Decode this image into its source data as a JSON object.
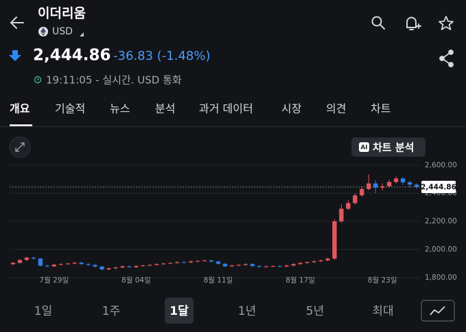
{
  "header": {
    "title": "이더리움",
    "currency": "USD",
    "price": "2,444.86",
    "change": "-36.83 (-1.48%)",
    "status": "19:11:05 - 실시간. USD 통화"
  },
  "tabs": [
    "개요",
    "기술적",
    "뉴스",
    "분석",
    "과거 데이터",
    "시장",
    "의견",
    "차트"
  ],
  "ai_button": {
    "badge": "AI",
    "label": "차트 분석"
  },
  "ranges": [
    "1일",
    "1주",
    "1달",
    "1년",
    "5년",
    "최대"
  ],
  "selected_range": "1달",
  "chart_data": {
    "type": "candlestick",
    "categories": [
      null,
      null,
      null,
      null,
      null,
      null,
      "7월 29일",
      null,
      null,
      null,
      null,
      null,
      null,
      null,
      null,
      null,
      null,
      null,
      "8월 04일",
      null,
      null,
      null,
      null,
      null,
      null,
      null,
      null,
      null,
      null,
      null,
      "8월 11일",
      null,
      null,
      null,
      null,
      null,
      null,
      null,
      null,
      null,
      null,
      null,
      "8월 17일",
      null,
      null,
      null,
      null,
      null,
      null,
      null,
      null,
      null,
      null,
      null,
      "8월 23일",
      null,
      null,
      null,
      null,
      null
    ],
    "open": [
      1895,
      1905,
      1925,
      1942,
      1935,
      1885,
      1880,
      1892,
      1896,
      1900,
      1906,
      1896,
      1890,
      1878,
      1858,
      1866,
      1872,
      1880,
      1874,
      1882,
      1886,
      1890,
      1896,
      1900,
      1904,
      1910,
      1908,
      1915,
      1918,
      1922,
      1914,
      1898,
      1880,
      1886,
      1890,
      1896,
      1882,
      1876,
      1880,
      1882,
      1879,
      1886,
      1896,
      1904,
      1910,
      1916,
      1922,
      1935,
      2200,
      2290,
      2330,
      2385,
      2430,
      2470,
      2440,
      2450,
      2480,
      2505,
      2478,
      2462
    ],
    "high": [
      1911,
      1931,
      1948,
      1948,
      1941,
      1891,
      1898,
      1902,
      1906,
      1912,
      1912,
      1902,
      1896,
      1884,
      1872,
      1878,
      1886,
      1886,
      1888,
      1892,
      1896,
      1902,
      1906,
      1910,
      1916,
      1916,
      1921,
      1924,
      1928,
      1928,
      1920,
      1904,
      1892,
      1896,
      1902,
      1902,
      1888,
      1886,
      1888,
      1888,
      1892,
      1902,
      1910,
      1916,
      1922,
      1928,
      1941,
      2215,
      2320,
      2350,
      2400,
      2450,
      2535,
      2490,
      2470,
      2495,
      2520,
      2515,
      2490,
      2470
    ],
    "low": [
      1889,
      1899,
      1919,
      1929,
      1879,
      1874,
      1874,
      1886,
      1890,
      1894,
      1890,
      1884,
      1872,
      1852,
      1852,
      1860,
      1866,
      1868,
      1868,
      1876,
      1880,
      1884,
      1890,
      1894,
      1898,
      1902,
      1902,
      1909,
      1912,
      1908,
      1892,
      1874,
      1874,
      1880,
      1884,
      1876,
      1870,
      1870,
      1874,
      1873,
      1873,
      1880,
      1890,
      1898,
      1904,
      1910,
      1916,
      1925,
      2190,
      2280,
      2320,
      2375,
      2420,
      2400,
      2420,
      2440,
      2470,
      2460,
      2440,
      2430
    ],
    "close": [
      1905,
      1925,
      1942,
      1935,
      1885,
      1880,
      1892,
      1896,
      1900,
      1906,
      1896,
      1890,
      1878,
      1858,
      1866,
      1872,
      1880,
      1874,
      1882,
      1886,
      1890,
      1896,
      1900,
      1904,
      1910,
      1908,
      1915,
      1918,
      1922,
      1914,
      1898,
      1880,
      1886,
      1890,
      1896,
      1882,
      1876,
      1880,
      1882,
      1879,
      1886,
      1896,
      1904,
      1910,
      1916,
      1922,
      1935,
      2200,
      2290,
      2330,
      2385,
      2430,
      2470,
      2440,
      2450,
      2480,
      2505,
      2478,
      2462,
      2444.86
    ],
    "up_color": "#e2575b",
    "down_color": "#2f7fe6",
    "current_price": {
      "value": 2444.86,
      "label": "2,444.86"
    },
    "ylim": [
      1760,
      2660
    ],
    "yticks": [
      {
        "value": 1800,
        "label": "1,800.00"
      },
      {
        "value": 2000,
        "label": "2,000.00"
      },
      {
        "value": 2200,
        "label": "2,200.00"
      },
      {
        "value": 2400,
        "label": "2,400.00"
      },
      {
        "value": 2600,
        "label": "2,600.00"
      }
    ],
    "grid": true
  }
}
